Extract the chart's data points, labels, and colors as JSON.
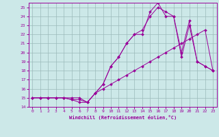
{
  "xlabel": "Windchill (Refroidissement éolien,°C)",
  "bg_color": "#cce8e8",
  "grid_color": "#9bbaba",
  "line_color": "#990099",
  "xlim": [
    -0.5,
    23.5
  ],
  "ylim": [
    14,
    25.5
  ],
  "yticks": [
    14,
    15,
    16,
    17,
    18,
    19,
    20,
    21,
    22,
    23,
    24,
    25
  ],
  "xticks": [
    0,
    1,
    2,
    3,
    4,
    5,
    6,
    7,
    8,
    9,
    10,
    11,
    12,
    13,
    14,
    15,
    16,
    17,
    18,
    19,
    20,
    21,
    22,
    23
  ],
  "series": [
    {
      "x": [
        0,
        1,
        2,
        3,
        4,
        5,
        6,
        7,
        8,
        9,
        10,
        11,
        12,
        13,
        14,
        15,
        16,
        17,
        18,
        19,
        20,
        21,
        22,
        23
      ],
      "y": [
        15,
        15,
        15,
        15,
        15,
        15,
        15,
        14.5,
        15.5,
        16,
        16.5,
        17,
        17.5,
        18,
        18.5,
        19,
        19.5,
        20,
        20.5,
        21,
        21.5,
        22,
        22.5,
        18
      ]
    },
    {
      "x": [
        0,
        1,
        2,
        3,
        4,
        5,
        6,
        7,
        8,
        9,
        10,
        11,
        12,
        13,
        14,
        15,
        16,
        17,
        18,
        19,
        20,
        21,
        22,
        23
      ],
      "y": [
        15,
        15,
        15,
        15,
        15,
        14.8,
        14.5,
        14.5,
        15.5,
        16.5,
        18.5,
        19.5,
        21,
        22,
        22,
        24.5,
        25.5,
        24,
        24,
        19.5,
        23,
        19,
        18.5,
        18
      ]
    },
    {
      "x": [
        0,
        1,
        2,
        3,
        4,
        5,
        6,
        7,
        8,
        9,
        10,
        11,
        12,
        13,
        14,
        15,
        16,
        17,
        18,
        19,
        20,
        21,
        22,
        23
      ],
      "y": [
        15,
        15,
        15,
        15,
        15,
        14.8,
        14.8,
        14.5,
        15.5,
        16.5,
        18.5,
        19.5,
        21,
        22,
        22.5,
        24,
        25,
        24.5,
        24,
        20,
        23.5,
        19,
        18.5,
        18
      ]
    }
  ]
}
